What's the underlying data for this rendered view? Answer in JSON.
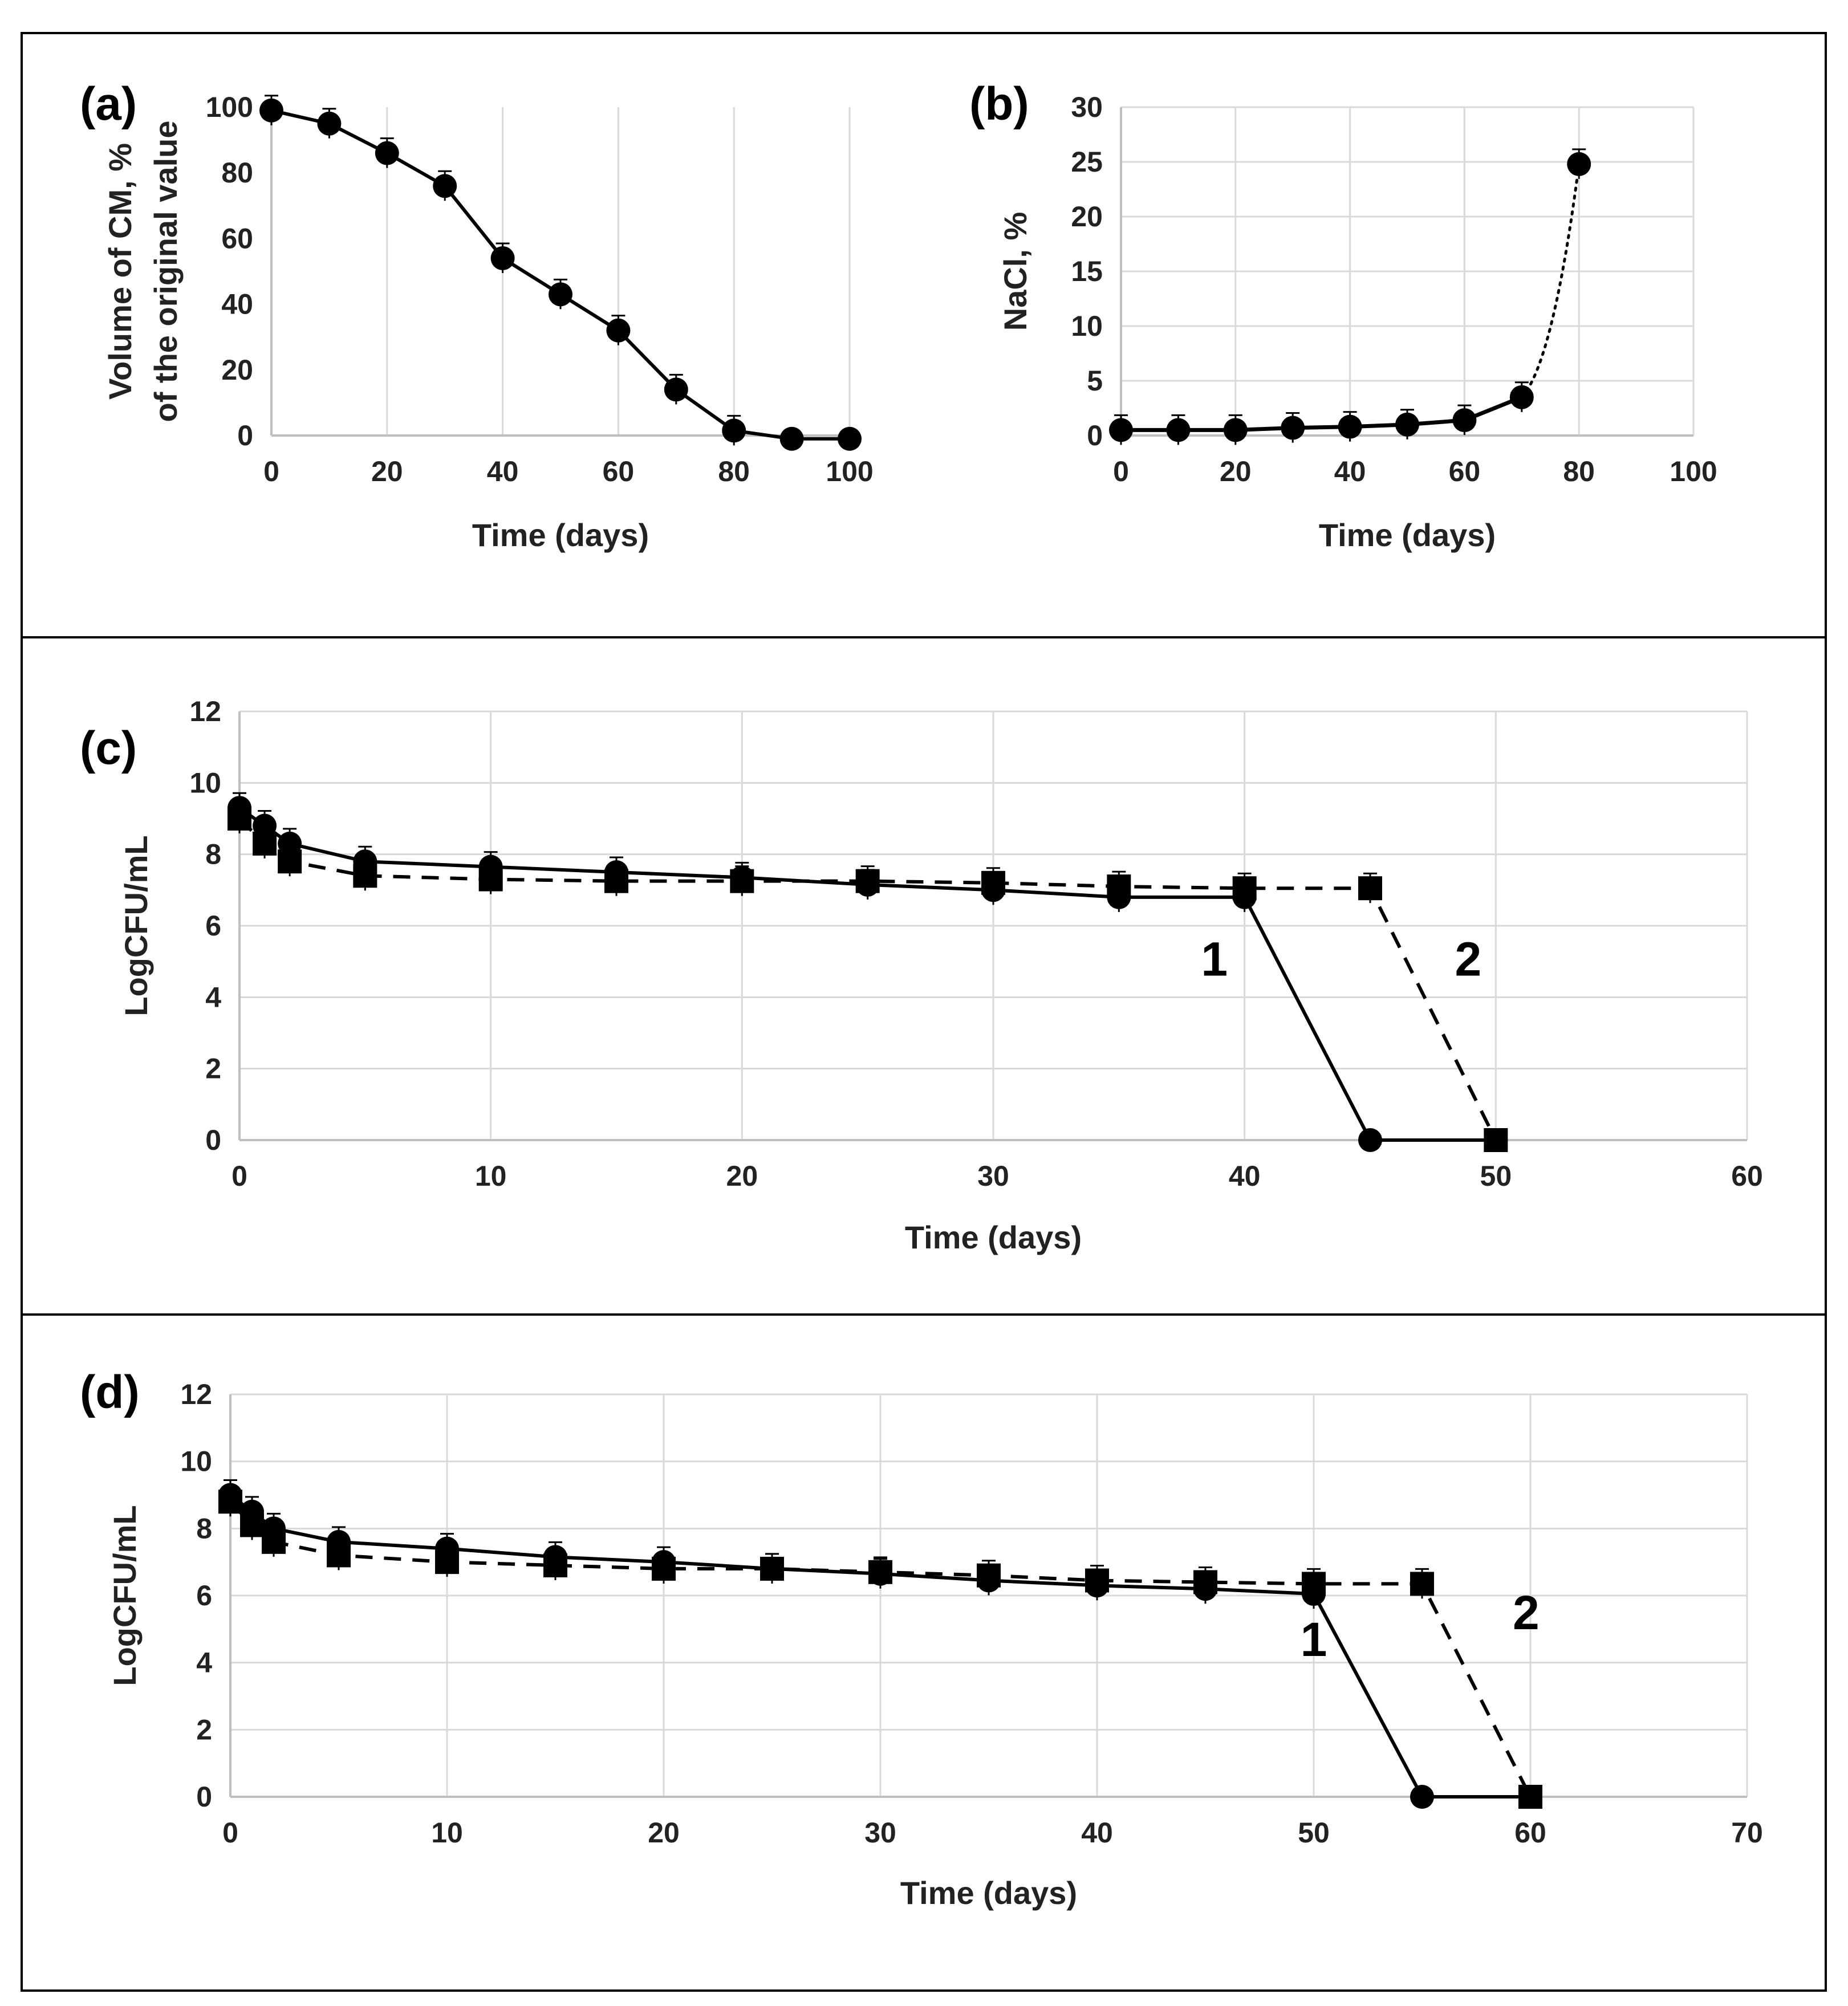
{
  "chart_data": [
    {
      "id": "a",
      "type": "line",
      "panel_label": "(a)",
      "xlabel": "Time (days)",
      "ylabel_lines": [
        "Volume of CM, %",
        "of the original value"
      ],
      "xlim": [
        0,
        100
      ],
      "ylim": [
        0,
        100
      ],
      "xticks": [
        0,
        20,
        40,
        60,
        80,
        100
      ],
      "yticks": [
        0,
        20,
        40,
        60,
        80,
        100
      ],
      "grid": "vertical",
      "series": [
        {
          "name": "volume",
          "marker": "circle",
          "line": "solid",
          "x": [
            0,
            10,
            20,
            30,
            40,
            50,
            60,
            70,
            80,
            90,
            100
          ],
          "y": [
            99,
            95,
            86,
            76,
            54,
            43,
            32,
            14,
            1.5,
            -1,
            -1
          ]
        }
      ]
    },
    {
      "id": "b",
      "type": "line",
      "panel_label": "(b)",
      "xlabel": "Time (days)",
      "ylabel_lines": [
        "NaCl, %"
      ],
      "xlim": [
        0,
        100
      ],
      "ylim": [
        0,
        30
      ],
      "xticks": [
        0,
        20,
        40,
        60,
        80,
        100
      ],
      "yticks": [
        0,
        5,
        10,
        15,
        20,
        25,
        30
      ],
      "grid": "both",
      "series": [
        {
          "name": "NaCl",
          "marker": "circle",
          "line": "solid",
          "dotted_last_segment": true,
          "x": [
            0,
            10,
            20,
            30,
            40,
            50,
            60,
            70,
            80
          ],
          "y": [
            0.5,
            0.5,
            0.5,
            0.7,
            0.8,
            1.0,
            1.4,
            3.5,
            24.8
          ]
        }
      ]
    },
    {
      "id": "c",
      "type": "line",
      "panel_label": "(c)",
      "xlabel": "Time (days)",
      "ylabel_lines": [
        "LogCFU/mL"
      ],
      "xlim": [
        0,
        60
      ],
      "ylim": [
        0,
        12
      ],
      "xticks": [
        0,
        10,
        20,
        30,
        40,
        50,
        60
      ],
      "yticks": [
        0,
        2,
        4,
        6,
        8,
        10,
        12
      ],
      "grid": "both",
      "annotations": [
        {
          "text": "1",
          "x": 38.8,
          "y": 4.6
        },
        {
          "text": "2",
          "x": 48.9,
          "y": 4.6
        }
      ],
      "series": [
        {
          "name": "1",
          "marker": "circle",
          "line": "solid",
          "x": [
            0,
            1,
            2,
            5,
            10,
            15,
            20,
            25,
            30,
            35,
            40,
            45,
            50
          ],
          "y": [
            9.3,
            8.8,
            8.3,
            7.8,
            7.65,
            7.5,
            7.35,
            7.15,
            7.0,
            6.8,
            6.8,
            0,
            0
          ]
        },
        {
          "name": "2",
          "marker": "square",
          "line": "dashed",
          "x": [
            0,
            1,
            2,
            5,
            10,
            15,
            20,
            25,
            30,
            35,
            40,
            45,
            50
          ],
          "y": [
            9.0,
            8.3,
            7.8,
            7.4,
            7.3,
            7.25,
            7.25,
            7.25,
            7.2,
            7.1,
            7.05,
            7.05,
            0
          ]
        }
      ]
    },
    {
      "id": "d",
      "type": "line",
      "panel_label": "(d)",
      "xlabel": "Time (days)",
      "ylabel_lines": [
        "LogCFU/mL"
      ],
      "xlim": [
        0,
        70
      ],
      "ylim": [
        0,
        12
      ],
      "xticks": [
        0,
        10,
        20,
        30,
        40,
        50,
        60,
        70
      ],
      "yticks": [
        0,
        2,
        4,
        6,
        8,
        10,
        12
      ],
      "grid": "both",
      "annotations": [
        {
          "text": "1",
          "x": 50,
          "y": 4.2
        },
        {
          "text": "2",
          "x": 59.8,
          "y": 5.0
        }
      ],
      "series": [
        {
          "name": "1",
          "marker": "circle",
          "line": "solid",
          "x": [
            0,
            1,
            2,
            5,
            10,
            15,
            20,
            25,
            30,
            35,
            40,
            45,
            50,
            55,
            60
          ],
          "y": [
            9.0,
            8.5,
            8.0,
            7.6,
            7.4,
            7.15,
            7.0,
            6.8,
            6.65,
            6.45,
            6.3,
            6.2,
            6.05,
            0,
            0
          ]
        },
        {
          "name": "2",
          "marker": "square",
          "line": "dashed",
          "x": [
            0,
            1,
            2,
            5,
            10,
            15,
            20,
            25,
            30,
            35,
            40,
            45,
            50,
            55,
            60
          ],
          "y": [
            8.8,
            8.1,
            7.6,
            7.2,
            7.0,
            6.9,
            6.8,
            6.8,
            6.7,
            6.6,
            6.45,
            6.4,
            6.35,
            6.35,
            0
          ]
        }
      ]
    }
  ]
}
